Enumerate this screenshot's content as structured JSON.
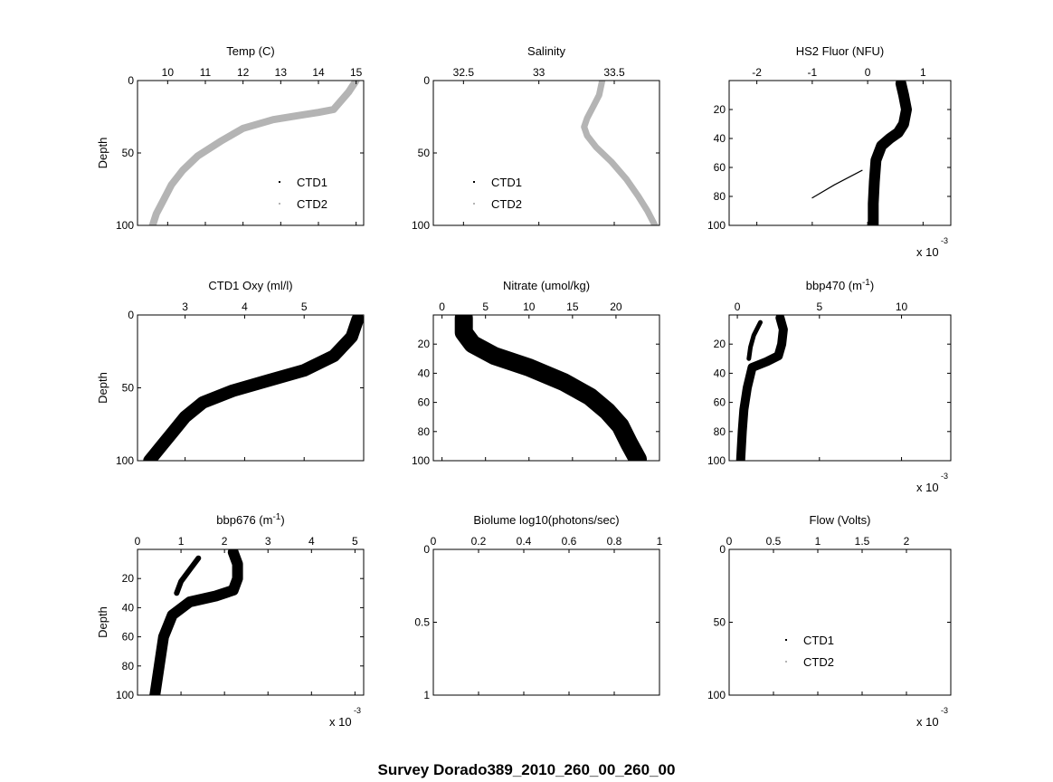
{
  "figure": {
    "suptitle": "Survey Dorado389_2010_260_00_260_00",
    "multiplier_base": "x 10",
    "multiplier_exp": "-3"
  },
  "colors": {
    "ctd1": "#000000",
    "ctd2": "#b4b4b4"
  },
  "chart_data": [
    {
      "type": "scatter",
      "title": "Temp (C)",
      "ylabel": "Depth",
      "xlim": [
        9.2,
        15.2
      ],
      "ylim": [
        0,
        100
      ],
      "y_reversed": true,
      "xticks": [
        {
          "v": 10,
          "label": "10"
        },
        {
          "v": 11,
          "label": "11"
        },
        {
          "v": 12,
          "label": "12"
        },
        {
          "v": 13,
          "label": "13"
        },
        {
          "v": 14,
          "label": "14"
        },
        {
          "v": 15,
          "label": "15"
        }
      ],
      "yticks": [
        {
          "v": 0,
          "label": "0"
        },
        {
          "v": 50,
          "label": "50"
        },
        {
          "v": 100,
          "label": "100"
        }
      ],
      "legend": [
        "CTD1",
        "CTD2"
      ],
      "legend_position": "lower-right",
      "series": [
        {
          "name": "CTD1",
          "color": "#000000",
          "width": 1.3,
          "x": [
            15.0,
            14.8,
            14.6,
            14.4,
            14.0,
            13.5,
            12.8,
            12.0,
            11.4,
            10.8,
            10.4,
            10.1,
            9.9,
            9.7,
            9.6
          ],
          "y": [
            0,
            8,
            14,
            20,
            22,
            24,
            27,
            33,
            42,
            52,
            62,
            72,
            82,
            92,
            100
          ]
        },
        {
          "name": "CTD2",
          "color": "#b4b4b4",
          "width": 8,
          "x": [
            15.0,
            14.8,
            14.6,
            14.4,
            14.0,
            13.5,
            12.8,
            12.0,
            11.4,
            10.8,
            10.4,
            10.1,
            9.9,
            9.7,
            9.6
          ],
          "y": [
            0,
            8,
            14,
            20,
            22,
            24,
            27,
            33,
            42,
            52,
            62,
            72,
            82,
            92,
            100
          ]
        }
      ]
    },
    {
      "type": "scatter",
      "title": "Salinity",
      "ylabel": "",
      "xlim": [
        32.3,
        33.8
      ],
      "ylim": [
        0,
        100
      ],
      "y_reversed": true,
      "xticks": [
        {
          "v": 32.5,
          "label": "32.5"
        },
        {
          "v": 33,
          "label": "33"
        },
        {
          "v": 33.5,
          "label": "33.5"
        }
      ],
      "yticks": [
        {
          "v": 0,
          "label": "0"
        },
        {
          "v": 50,
          "label": "50"
        },
        {
          "v": 100,
          "label": "100"
        }
      ],
      "legend": [
        "CTD1",
        "CTD2"
      ],
      "legend_position": "lower-left",
      "series": [
        {
          "name": "CTD1",
          "color": "#000000",
          "width": 1.3,
          "x": [
            33.42,
            33.4,
            33.36,
            33.32,
            33.3,
            33.32,
            33.38,
            33.48,
            33.58,
            33.66,
            33.72,
            33.77
          ],
          "y": [
            0,
            10,
            18,
            26,
            32,
            38,
            46,
            56,
            68,
            80,
            90,
            100
          ]
        },
        {
          "name": "CTD2",
          "color": "#b4b4b4",
          "width": 7,
          "x": [
            33.42,
            33.4,
            33.36,
            33.32,
            33.3,
            33.32,
            33.38,
            33.48,
            33.58,
            33.66,
            33.72,
            33.77
          ],
          "y": [
            0,
            10,
            18,
            26,
            32,
            38,
            46,
            56,
            68,
            80,
            90,
            100
          ]
        }
      ]
    },
    {
      "type": "scatter",
      "title": "HS2 Fluor (NFU)",
      "ylabel": "",
      "multiplier": true,
      "xlim": [
        -2.5,
        1.5
      ],
      "ylim": [
        0,
        100
      ],
      "y_reversed": true,
      "xticks": [
        {
          "v": -2,
          "label": "-2"
        },
        {
          "v": -1,
          "label": "-1"
        },
        {
          "v": 0,
          "label": "0"
        },
        {
          "v": 1,
          "label": "1"
        }
      ],
      "yticks": [
        {
          "v": 20,
          "label": "20"
        },
        {
          "v": 40,
          "label": "40"
        },
        {
          "v": 60,
          "label": "60"
        },
        {
          "v": 80,
          "label": "80"
        },
        {
          "v": 100,
          "label": "100"
        }
      ],
      "series": [
        {
          "name": "",
          "color": "#000000",
          "width": 12,
          "x": [
            0.6,
            0.65,
            0.7,
            0.65,
            0.55,
            0.4,
            0.25,
            0.15,
            0.12,
            0.1,
            0.1
          ],
          "y": [
            2,
            10,
            20,
            30,
            36,
            40,
            45,
            55,
            70,
            85,
            100
          ]
        },
        {
          "name": "",
          "color": "#000000",
          "width": 1.2,
          "x": [
            -0.1,
            -0.6,
            -1.0
          ],
          "y": [
            62,
            72,
            81
          ]
        }
      ]
    },
    {
      "type": "scatter",
      "title": "CTD1 Oxy (ml/l)",
      "ylabel": "Depth",
      "xlim": [
        2.2,
        6.0
      ],
      "ylim": [
        0,
        100
      ],
      "y_reversed": true,
      "xticks": [
        {
          "v": 3,
          "label": "3"
        },
        {
          "v": 4,
          "label": "4"
        },
        {
          "v": 5,
          "label": "5"
        }
      ],
      "yticks": [
        {
          "v": 0,
          "label": "0"
        },
        {
          "v": 50,
          "label": "50"
        },
        {
          "v": 100,
          "label": "100"
        }
      ],
      "series": [
        {
          "name": "",
          "color": "#000000",
          "width": 14,
          "x": [
            5.9,
            5.8,
            5.5,
            5.0,
            4.4,
            3.8,
            3.3,
            3.0,
            2.8,
            2.6,
            2.4
          ],
          "y": [
            3,
            15,
            28,
            38,
            45,
            52,
            60,
            70,
            80,
            90,
            100
          ]
        }
      ]
    },
    {
      "type": "scatter",
      "title": "Nitrate (umol/kg)",
      "ylabel": "",
      "xlim": [
        -1,
        25
      ],
      "ylim": [
        0,
        100
      ],
      "y_reversed": true,
      "xticks": [
        {
          "v": 0,
          "label": "0"
        },
        {
          "v": 5,
          "label": "5"
        },
        {
          "v": 10,
          "label": "10"
        },
        {
          "v": 15,
          "label": "15"
        },
        {
          "v": 20,
          "label": "20"
        }
      ],
      "yticks": [
        {
          "v": 20,
          "label": "20"
        },
        {
          "v": 40,
          "label": "40"
        },
        {
          "v": 60,
          "label": "60"
        },
        {
          "v": 80,
          "label": "80"
        },
        {
          "v": 100,
          "label": "100"
        }
      ],
      "series": [
        {
          "name": "",
          "color": "#000000",
          "width": 20,
          "x": [
            2.5,
            2.5,
            3.5,
            6,
            10,
            14,
            17,
            19,
            20.5,
            21.5,
            22.5
          ],
          "y": [
            2,
            12,
            20,
            28,
            36,
            46,
            56,
            66,
            76,
            88,
            99
          ]
        }
      ]
    },
    {
      "type": "scatter",
      "title": "bbp470 (m",
      "title_sup": "-1",
      "title_end": ")",
      "ylabel": "",
      "multiplier": true,
      "xlim": [
        -0.5,
        13
      ],
      "ylim": [
        0,
        100
      ],
      "y_reversed": true,
      "xticks": [
        {
          "v": 0,
          "label": "0"
        },
        {
          "v": 5,
          "label": "5"
        },
        {
          "v": 10,
          "label": "10"
        }
      ],
      "yticks": [
        {
          "v": 20,
          "label": "20"
        },
        {
          "v": 40,
          "label": "40"
        },
        {
          "v": 60,
          "label": "60"
        },
        {
          "v": 80,
          "label": "80"
        },
        {
          "v": 100,
          "label": "100"
        }
      ],
      "series": [
        {
          "name": "",
          "color": "#000000",
          "width": 10,
          "x": [
            2.6,
            2.8,
            2.7,
            2.5,
            1.8,
            0.9,
            0.6,
            0.4,
            0.3,
            0.2
          ],
          "y": [
            2,
            10,
            20,
            28,
            32,
            36,
            50,
            65,
            80,
            100
          ]
        },
        {
          "name": "",
          "color": "#000000",
          "width": 5,
          "x": [
            1.4,
            1.0,
            0.8,
            0.7
          ],
          "y": [
            5,
            14,
            22,
            30
          ]
        }
      ]
    },
    {
      "type": "scatter",
      "title": "bbp676 (m",
      "title_sup": "-1",
      "title_end": ")",
      "ylabel": "Depth",
      "multiplier": true,
      "xlim": [
        0,
        5.2
      ],
      "ylim": [
        0,
        100
      ],
      "y_reversed": true,
      "xticks": [
        {
          "v": 0,
          "label": "0"
        },
        {
          "v": 1,
          "label": "1"
        },
        {
          "v": 2,
          "label": "2"
        },
        {
          "v": 3,
          "label": "3"
        },
        {
          "v": 4,
          "label": "4"
        },
        {
          "v": 5,
          "label": "5"
        }
      ],
      "yticks": [
        {
          "v": 20,
          "label": "20"
        },
        {
          "v": 40,
          "label": "40"
        },
        {
          "v": 60,
          "label": "60"
        },
        {
          "v": 80,
          "label": "80"
        },
        {
          "v": 100,
          "label": "100"
        }
      ],
      "series": [
        {
          "name": "",
          "color": "#000000",
          "width": 12,
          "x": [
            2.2,
            2.3,
            2.3,
            2.2,
            1.8,
            1.2,
            0.8,
            0.6,
            0.5,
            0.4
          ],
          "y": [
            2,
            10,
            20,
            28,
            32,
            36,
            45,
            60,
            80,
            100
          ]
        },
        {
          "name": "",
          "color": "#000000",
          "width": 6,
          "x": [
            1.4,
            1.2,
            1.0,
            0.9
          ],
          "y": [
            6,
            14,
            22,
            30
          ]
        }
      ]
    },
    {
      "type": "scatter",
      "title": "Biolume log10(photons/sec)",
      "ylabel": "",
      "xlim": [
        0,
        1
      ],
      "ylim": [
        0,
        1
      ],
      "y_reversed": true,
      "xticks": [
        {
          "v": 0,
          "label": "0"
        },
        {
          "v": 0.2,
          "label": "0.2"
        },
        {
          "v": 0.4,
          "label": "0.4"
        },
        {
          "v": 0.6,
          "label": "0.6"
        },
        {
          "v": 0.8,
          "label": "0.8"
        },
        {
          "v": 1,
          "label": "1"
        }
      ],
      "yticks": [
        {
          "v": 0,
          "label": "0"
        },
        {
          "v": 0.5,
          "label": "0.5"
        },
        {
          "v": 1,
          "label": "1"
        }
      ],
      "series": []
    },
    {
      "type": "scatter",
      "title": "Flow (Volts)",
      "ylabel": "",
      "multiplier": true,
      "xlim": [
        0,
        2.5
      ],
      "ylim": [
        0,
        100
      ],
      "y_reversed": true,
      "xticks": [
        {
          "v": 0,
          "label": "0"
        },
        {
          "v": 0.5,
          "label": "0.5"
        },
        {
          "v": 1,
          "label": "1"
        },
        {
          "v": 1.5,
          "label": "1.5"
        },
        {
          "v": 2,
          "label": "2"
        }
      ],
      "yticks": [
        {
          "v": 0,
          "label": "0"
        },
        {
          "v": 50,
          "label": "50"
        },
        {
          "v": 100,
          "label": "100"
        }
      ],
      "legend": [
        "CTD1",
        "CTD2"
      ],
      "legend_position": "lower-center",
      "series": []
    }
  ]
}
